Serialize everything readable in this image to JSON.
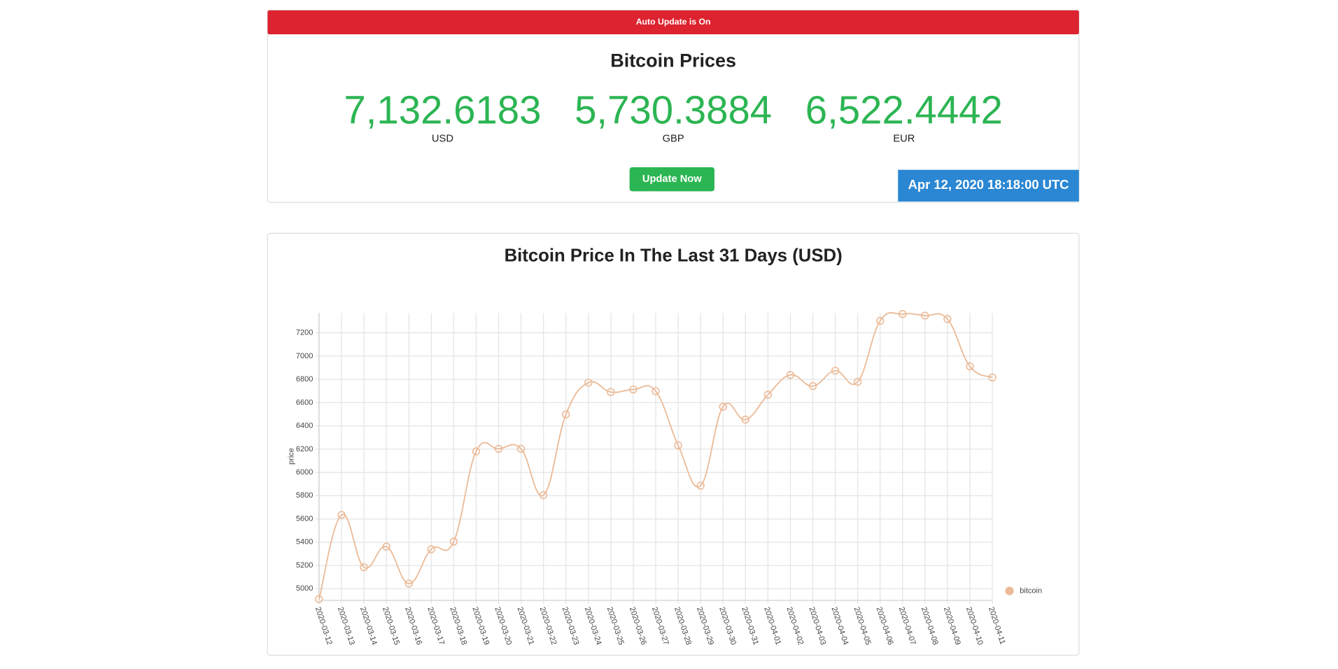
{
  "header": {
    "banner": "Auto Update is On",
    "title": "Bitcoin Prices",
    "prices": [
      {
        "value": "7,132.6183",
        "currency": "USD"
      },
      {
        "value": "5,730.3884",
        "currency": "GBP"
      },
      {
        "value": "6,522.4442",
        "currency": "EUR"
      }
    ],
    "button": "Update Now",
    "timestamp": "Apr 12, 2020 18:18:00 UTC"
  },
  "chart_data": {
    "type": "line",
    "title": "Bitcoin Price In The Last 31 Days (USD)",
    "y_label": "price",
    "categories": [
      "2020-03-12",
      "2020-03-13",
      "2020-03-14",
      "2020-03-15",
      "2020-03-16",
      "2020-03-17",
      "2020-03-18",
      "2020-03-19",
      "2020-03-20",
      "2020-03-21",
      "2020-03-22",
      "2020-03-23",
      "2020-03-24",
      "2020-03-25",
      "2020-03-26",
      "2020-03-27",
      "2020-03-28",
      "2020-03-29",
      "2020-03-30",
      "2020-03-31",
      "2020-04-01",
      "2020-04-02",
      "2020-04-03",
      "2020-04-04",
      "2020-04-05",
      "2020-04-06",
      "2020-04-07",
      "2020-04-08",
      "2020-04-09",
      "2020-04-10",
      "2020-04-11"
    ],
    "series": [
      {
        "name": "bitcoin",
        "color": "#ebbb98",
        "values": [
          4911,
          5635,
          5185,
          5362,
          5044,
          5340,
          5406,
          6181,
          6203,
          6203,
          5805,
          6499,
          6772,
          6691,
          6713,
          6698,
          6233,
          5886,
          6565,
          6454,
          6668,
          6838,
          6742,
          6875,
          6779,
          7303,
          7362,
          7348,
          7318,
          6912,
          6816
        ]
      }
    ],
    "ylim": [
      4900,
      7370
    ],
    "yticks": [
      5000,
      5200,
      5400,
      5600,
      5800,
      6000,
      6200,
      6400,
      6600,
      6800,
      7000,
      7200
    ],
    "grid": true,
    "legend": "right"
  }
}
